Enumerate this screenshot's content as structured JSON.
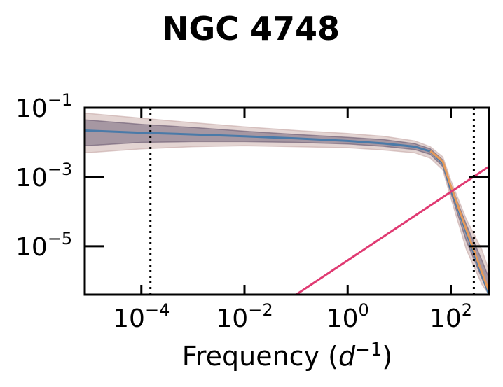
{
  "chart_data": {
    "type": "line",
    "title": "NGC 4748",
    "xlabel": {
      "prefix": "Frequency (",
      "var": "d",
      "sup": "−1",
      "suffix": ")"
    },
    "ylabel": "",
    "xscale": "log",
    "yscale": "log",
    "xlim": [
      8e-06,
      550
    ],
    "ylim": [
      4e-07,
      0.1
    ],
    "x_ticks": [
      {
        "value": 0.0001,
        "base": "10",
        "exp": "−4"
      },
      {
        "value": 0.01,
        "base": "10",
        "exp": "−2"
      },
      {
        "value": 1,
        "base": "10",
        "exp": "0"
      },
      {
        "value": 100,
        "base": "10",
        "exp": "2"
      }
    ],
    "y_ticks": [
      {
        "value": 0.1,
        "base": "10",
        "exp": "−1"
      },
      {
        "value": 0.001,
        "base": "10",
        "exp": "−3"
      },
      {
        "value": 1e-05,
        "base": "10",
        "exp": "−5"
      }
    ],
    "vlines": [
      0.00015,
      280
    ],
    "series": [
      {
        "color": "#4a7aa8",
        "role": "psd-median",
        "x": [
          8e-06,
          0.0001,
          0.001,
          0.01,
          0.1,
          1,
          5,
          20,
          40,
          70,
          100,
          200,
          400,
          550
        ],
        "y": [
          0.022,
          0.019,
          0.017,
          0.015,
          0.013,
          0.011,
          0.0093,
          0.0075,
          0.0055,
          0.0025,
          0.00045,
          2.5e-05,
          1.5e-06,
          4e-07
        ]
      },
      {
        "color": "#e69a5a",
        "role": "alt-median",
        "x": [
          40,
          70,
          100,
          200,
          400,
          550
        ],
        "y": [
          0.0056,
          0.0028,
          0.00055,
          3e-05,
          1.8e-06,
          5e-07
        ]
      },
      {
        "color": "#e03a72",
        "role": "noise-model",
        "x": [
          0.1,
          550
        ],
        "y": [
          4e-07,
          0.002
        ]
      }
    ],
    "bands": [
      {
        "color": "#c7a9a6",
        "role": "outer-interval",
        "x": [
          8e-06,
          0.0001,
          0.001,
          0.01,
          0.1,
          1,
          5,
          20,
          40,
          70,
          100,
          200,
          400,
          550
        ],
        "lower": [
          0.005,
          0.0065,
          0.0075,
          0.008,
          0.0075,
          0.007,
          0.006,
          0.005,
          0.0035,
          0.0016,
          0.00025,
          8e-06,
          8e-07,
          4e-07
        ],
        "upper": [
          0.07,
          0.05,
          0.037,
          0.028,
          0.022,
          0.018,
          0.015,
          0.011,
          0.0075,
          0.0038,
          0.0008,
          6e-05,
          8e-06,
          2e-06
        ]
      },
      {
        "color": "#6a5a72",
        "role": "inner-interval",
        "x": [
          8e-06,
          0.0001,
          0.001,
          0.01,
          0.1,
          1,
          5,
          20,
          40,
          70,
          100,
          200,
          400,
          550
        ],
        "lower": [
          0.008,
          0.01,
          0.0105,
          0.0105,
          0.01,
          0.009,
          0.0077,
          0.0062,
          0.0045,
          0.002,
          0.00035,
          1.4e-05,
          1.2e-06,
          4e-07
        ],
        "upper": [
          0.045,
          0.033,
          0.027,
          0.021,
          0.017,
          0.014,
          0.012,
          0.0092,
          0.0065,
          0.0031,
          0.0006,
          4.2e-05,
          4e-06,
          1.2e-06
        ]
      }
    ],
    "grid": false,
    "legend": "none"
  }
}
